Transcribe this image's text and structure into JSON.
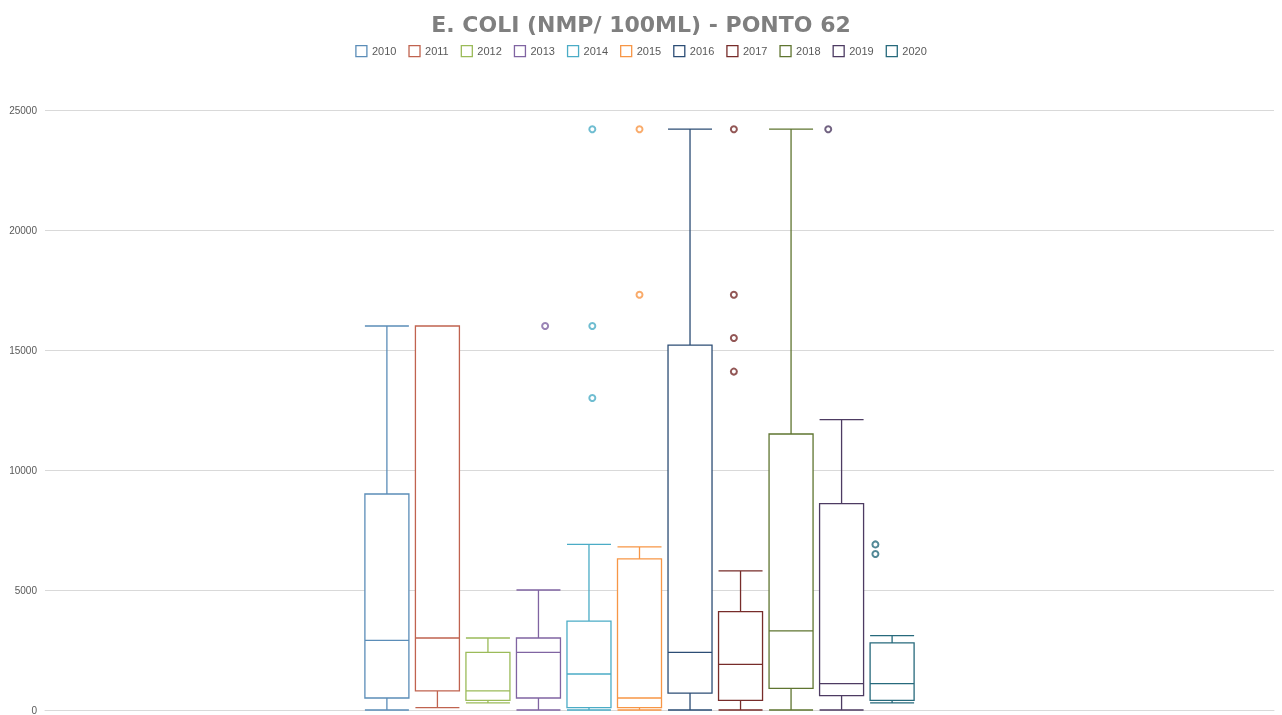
{
  "chart_data": {
    "type": "box",
    "title": "E. COLI (NMP/ 100ML) - PONTO 62",
    "categories": [
      null
    ],
    "series": [
      {
        "name": "2010",
        "color": "#5b8db8",
        "boxes": [
          {
            "low": 0,
            "q1": 500,
            "median": 2900,
            "q3": 9000,
            "high": 16000
          }
        ]
      },
      {
        "name": "2011",
        "color": "#c0634f",
        "boxes": [
          {
            "low": 100,
            "q1": 800,
            "median": 3000,
            "q3": 16000,
            "high": 16000
          }
        ]
      },
      {
        "name": "2012",
        "color": "#9bbb59",
        "boxes": [
          {
            "low": 300,
            "q1": 400,
            "median": 800,
            "q3": 2400,
            "high": 3000
          }
        ]
      },
      {
        "name": "2013",
        "color": "#8064a2",
        "boxes": [
          {
            "low": 0,
            "q1": 500,
            "median": 2400,
            "q3": 3000,
            "high": 5000,
            "outliers": [
              16000
            ]
          }
        ]
      },
      {
        "name": "2014",
        "color": "#4bacc6",
        "boxes": [
          {
            "low": 0,
            "q1": 100,
            "median": 1500,
            "q3": 3700,
            "high": 6900,
            "outliers": [
              24200,
              16000,
              13000
            ]
          }
        ]
      },
      {
        "name": "2015",
        "color": "#f79646",
        "boxes": [
          {
            "low": 0,
            "q1": 100,
            "median": 500,
            "q3": 6300,
            "high": 6800,
            "outliers": [
              24200,
              17300
            ]
          }
        ]
      },
      {
        "name": "2016",
        "color": "#2c4d75",
        "boxes": [
          {
            "low": 0,
            "q1": 700,
            "median": 2400,
            "q3": 15200,
            "high": 24200
          }
        ]
      },
      {
        "name": "2017",
        "color": "#772c2a",
        "boxes": [
          {
            "low": 0,
            "q1": 400,
            "median": 1900,
            "q3": 4100,
            "high": 5800,
            "outliers": [
              24200,
              17300,
              15500,
              14100
            ]
          }
        ]
      },
      {
        "name": "2018",
        "color": "#5f7530",
        "boxes": [
          {
            "low": 0,
            "q1": 900,
            "median": 3300,
            "q3": 11500,
            "high": 24200
          }
        ]
      },
      {
        "name": "2019",
        "color": "#4d3b62",
        "boxes": [
          {
            "low": 0,
            "q1": 600,
            "median": 1100,
            "q3": 8600,
            "high": 12100,
            "outliers": [
              24200
            ]
          }
        ]
      },
      {
        "name": "2020",
        "color": "#276a7c",
        "boxes": [
          {
            "low": 300,
            "q1": 400,
            "median": 1100,
            "q3": 2800,
            "high": 3100,
            "outliers": [
              6900,
              6500
            ]
          }
        ]
      }
    ],
    "ylim": [
      0,
      25000
    ],
    "yticks": [
      0,
      5000,
      10000,
      15000,
      20000,
      25000
    ],
    "grid": "y",
    "legend": "top",
    "tick_labels": "y",
    "marker": "circle"
  }
}
